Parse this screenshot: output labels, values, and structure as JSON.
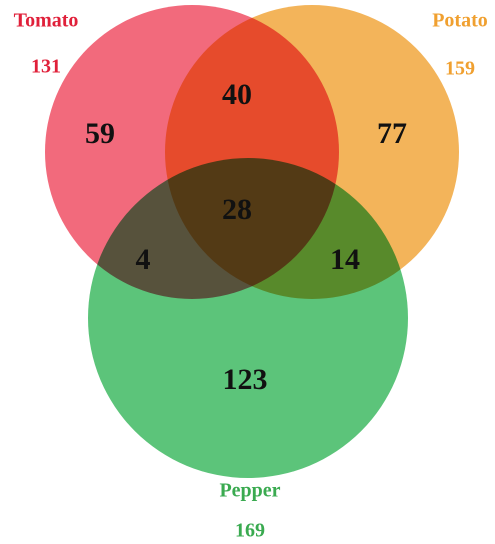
{
  "sets": [
    {
      "label": "Tomato",
      "total": 131
    },
    {
      "label": "Potato",
      "total": 159
    },
    {
      "label": "Pepper",
      "total": 169
    }
  ],
  "regions": [
    {
      "value": 59
    },
    {
      "value": 40
    },
    {
      "value": 77
    },
    {
      "value": 28
    },
    {
      "value": 4
    },
    {
      "value": 14
    },
    {
      "value": 123
    }
  ]
}
